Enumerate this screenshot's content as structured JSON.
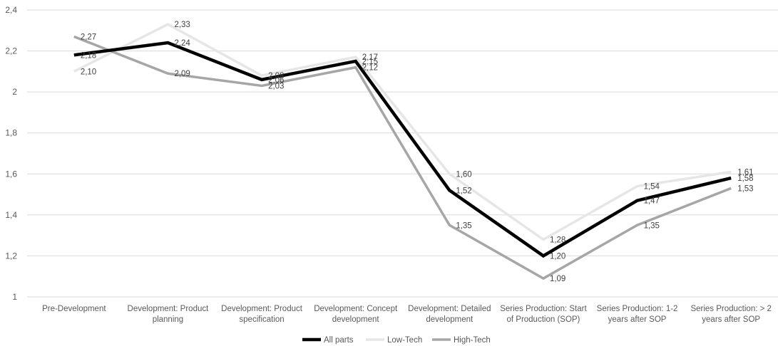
{
  "chart_data": {
    "type": "line",
    "title": "",
    "xlabel": "",
    "ylabel": "",
    "ylim": [
      1,
      2.4
    ],
    "yticks": [
      "1",
      "1,2",
      "1,4",
      "1,6",
      "1,8",
      "2",
      "2,2",
      "2,4"
    ],
    "grid": true,
    "legend_position": "bottom",
    "categories": [
      [
        "Pre-Development"
      ],
      [
        "Development: Product",
        "planning"
      ],
      [
        "Development: Product",
        "specification"
      ],
      [
        "Development: Concept",
        "development"
      ],
      [
        "Development: Detailed",
        "development"
      ],
      [
        "Series Production: Start",
        "of Production (SOP)"
      ],
      [
        "Series Production: 1-2",
        "years after SOP"
      ],
      [
        "Series Production: > 2",
        "years after SOP"
      ]
    ],
    "series": [
      {
        "name": "All parts",
        "color": "#000000",
        "values": [
          2.18,
          2.24,
          2.06,
          2.15,
          1.52,
          1.2,
          1.47,
          1.58
        ],
        "labels": [
          "2,18",
          "2,24",
          "2,06",
          "2,15",
          "1,52",
          "1,20",
          "1,47",
          "1,58"
        ]
      },
      {
        "name": "Low-Tech",
        "color": "#e6e6e6",
        "values": [
          2.1,
          2.33,
          2.08,
          2.17,
          1.6,
          1.28,
          1.54,
          1.61
        ],
        "labels": [
          "2,10",
          "2,33",
          "2,08",
          "2,17",
          "1,60",
          "1,28",
          "1,54",
          "1,61"
        ]
      },
      {
        "name": "High-Tech",
        "color": "#a6a6a6",
        "values": [
          2.27,
          2.09,
          2.03,
          2.12,
          1.35,
          1.09,
          1.35,
          1.53
        ],
        "labels": [
          "2,27",
          "2,09",
          "2,03",
          "2,12",
          "1,35",
          "1,09",
          "1,35",
          "1,53"
        ]
      }
    ]
  }
}
